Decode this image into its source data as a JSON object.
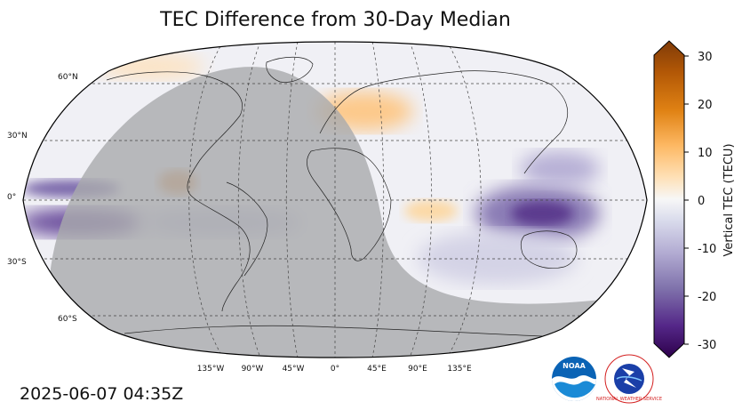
{
  "title": "TEC Difference from 30-Day Median",
  "timestamp": "2025-06-07 04:35Z",
  "map": {
    "projection": "robinson",
    "lat_labels": [
      "60°N",
      "30°N",
      "0°",
      "30°S",
      "60°S"
    ],
    "lat_values": [
      60,
      30,
      0,
      -30,
      -60
    ],
    "lon_labels": [
      "135°W",
      "90°W",
      "45°W",
      "0°",
      "45°E",
      "90°E",
      "135°E"
    ],
    "lon_values": [
      -135,
      -90,
      -45,
      0,
      45,
      90,
      135
    ],
    "night_shade_color": "#a9aaad",
    "gridline_style": "dashed"
  },
  "colorbar": {
    "label": "Vertical TEC (TECU)",
    "ticks": [
      "30",
      "20",
      "10",
      "0",
      "-10",
      "-20",
      "-30"
    ],
    "tick_values": [
      30,
      20,
      10,
      0,
      -10,
      -20,
      -30
    ],
    "range": [
      -30,
      30
    ],
    "colors_top_to_bottom": [
      "#7f3b08",
      "#b35806",
      "#e08214",
      "#fdb863",
      "#fee0b6",
      "#f7f7f7",
      "#d8daeb",
      "#b2abd2",
      "#8073ac",
      "#542788",
      "#2d004b"
    ]
  },
  "logos": {
    "noaa": "NOAA",
    "nws": "NATIONAL WEATHER SERVICE"
  }
}
